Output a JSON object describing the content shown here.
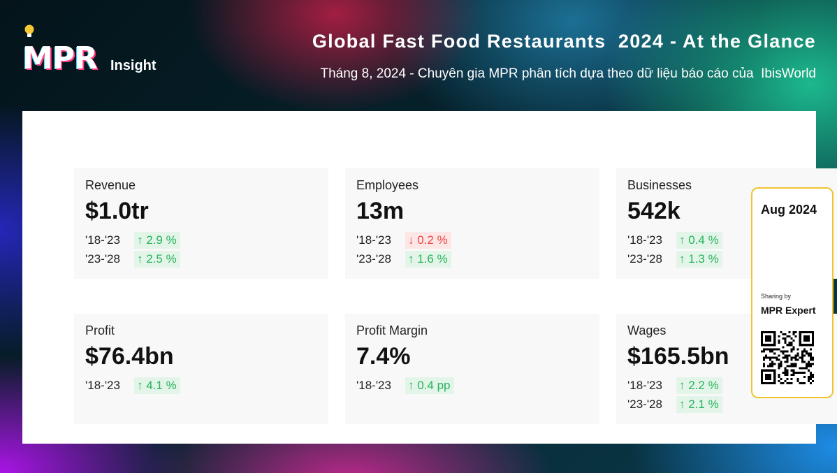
{
  "header": {
    "logo_text": "MPR",
    "logo_sub": "Insight",
    "title": "Global Fast Food Restaurants  2024 - At the Glance",
    "subtitle": "Tháng 8, 2024 - Chuyên gia MPR phân tích dựa theo dữ liệu báo cáo của  IbisWorld"
  },
  "cards": [
    {
      "label": "Revenue",
      "value": "$1.0tr",
      "rows": [
        {
          "period": "'18-'23",
          "change": "↑ 2.9 %",
          "direction": "up"
        },
        {
          "period": "'23-'28",
          "change": "↑ 2.5 %",
          "direction": "up"
        }
      ]
    },
    {
      "label": "Employees",
      "value": "13m",
      "rows": [
        {
          "period": "'18-'23",
          "change": "↓ 0.2 %",
          "direction": "down"
        },
        {
          "period": "'23-'28",
          "change": "↑ 1.6 %",
          "direction": "up"
        }
      ]
    },
    {
      "label": "Businesses",
      "value": "542k",
      "rows": [
        {
          "period": "'18-'23",
          "change": "↑ 0.4 %",
          "direction": "up"
        },
        {
          "period": "'23-'28",
          "change": "↑ 1.3 %",
          "direction": "up"
        }
      ]
    },
    {
      "label": "Profit",
      "value": "$76.4bn",
      "rows": [
        {
          "period": "'18-'23",
          "change": "↑ 4.1 %",
          "direction": "up"
        }
      ]
    },
    {
      "label": "Profit Margin",
      "value": "7.4%",
      "rows": [
        {
          "period": "'18-'23",
          "change": "↑ 0.4 pp",
          "direction": "up"
        }
      ]
    },
    {
      "label": "Wages",
      "value": "$165.5bn",
      "rows": [
        {
          "period": "'18-'23",
          "change": "↑ 2.2 %",
          "direction": "up"
        },
        {
          "period": "'23-'28",
          "change": "↑ 2.1 %",
          "direction": "up"
        }
      ]
    }
  ],
  "side_tag": {
    "month": "Aug 2024",
    "sharing_label": "Sharing by",
    "expert": "MPR Expert",
    "qr_icon": "qr-code-icon"
  },
  "colors": {
    "up": "#27b35a",
    "down": "#f04545",
    "tag_border": "#f2c331"
  }
}
